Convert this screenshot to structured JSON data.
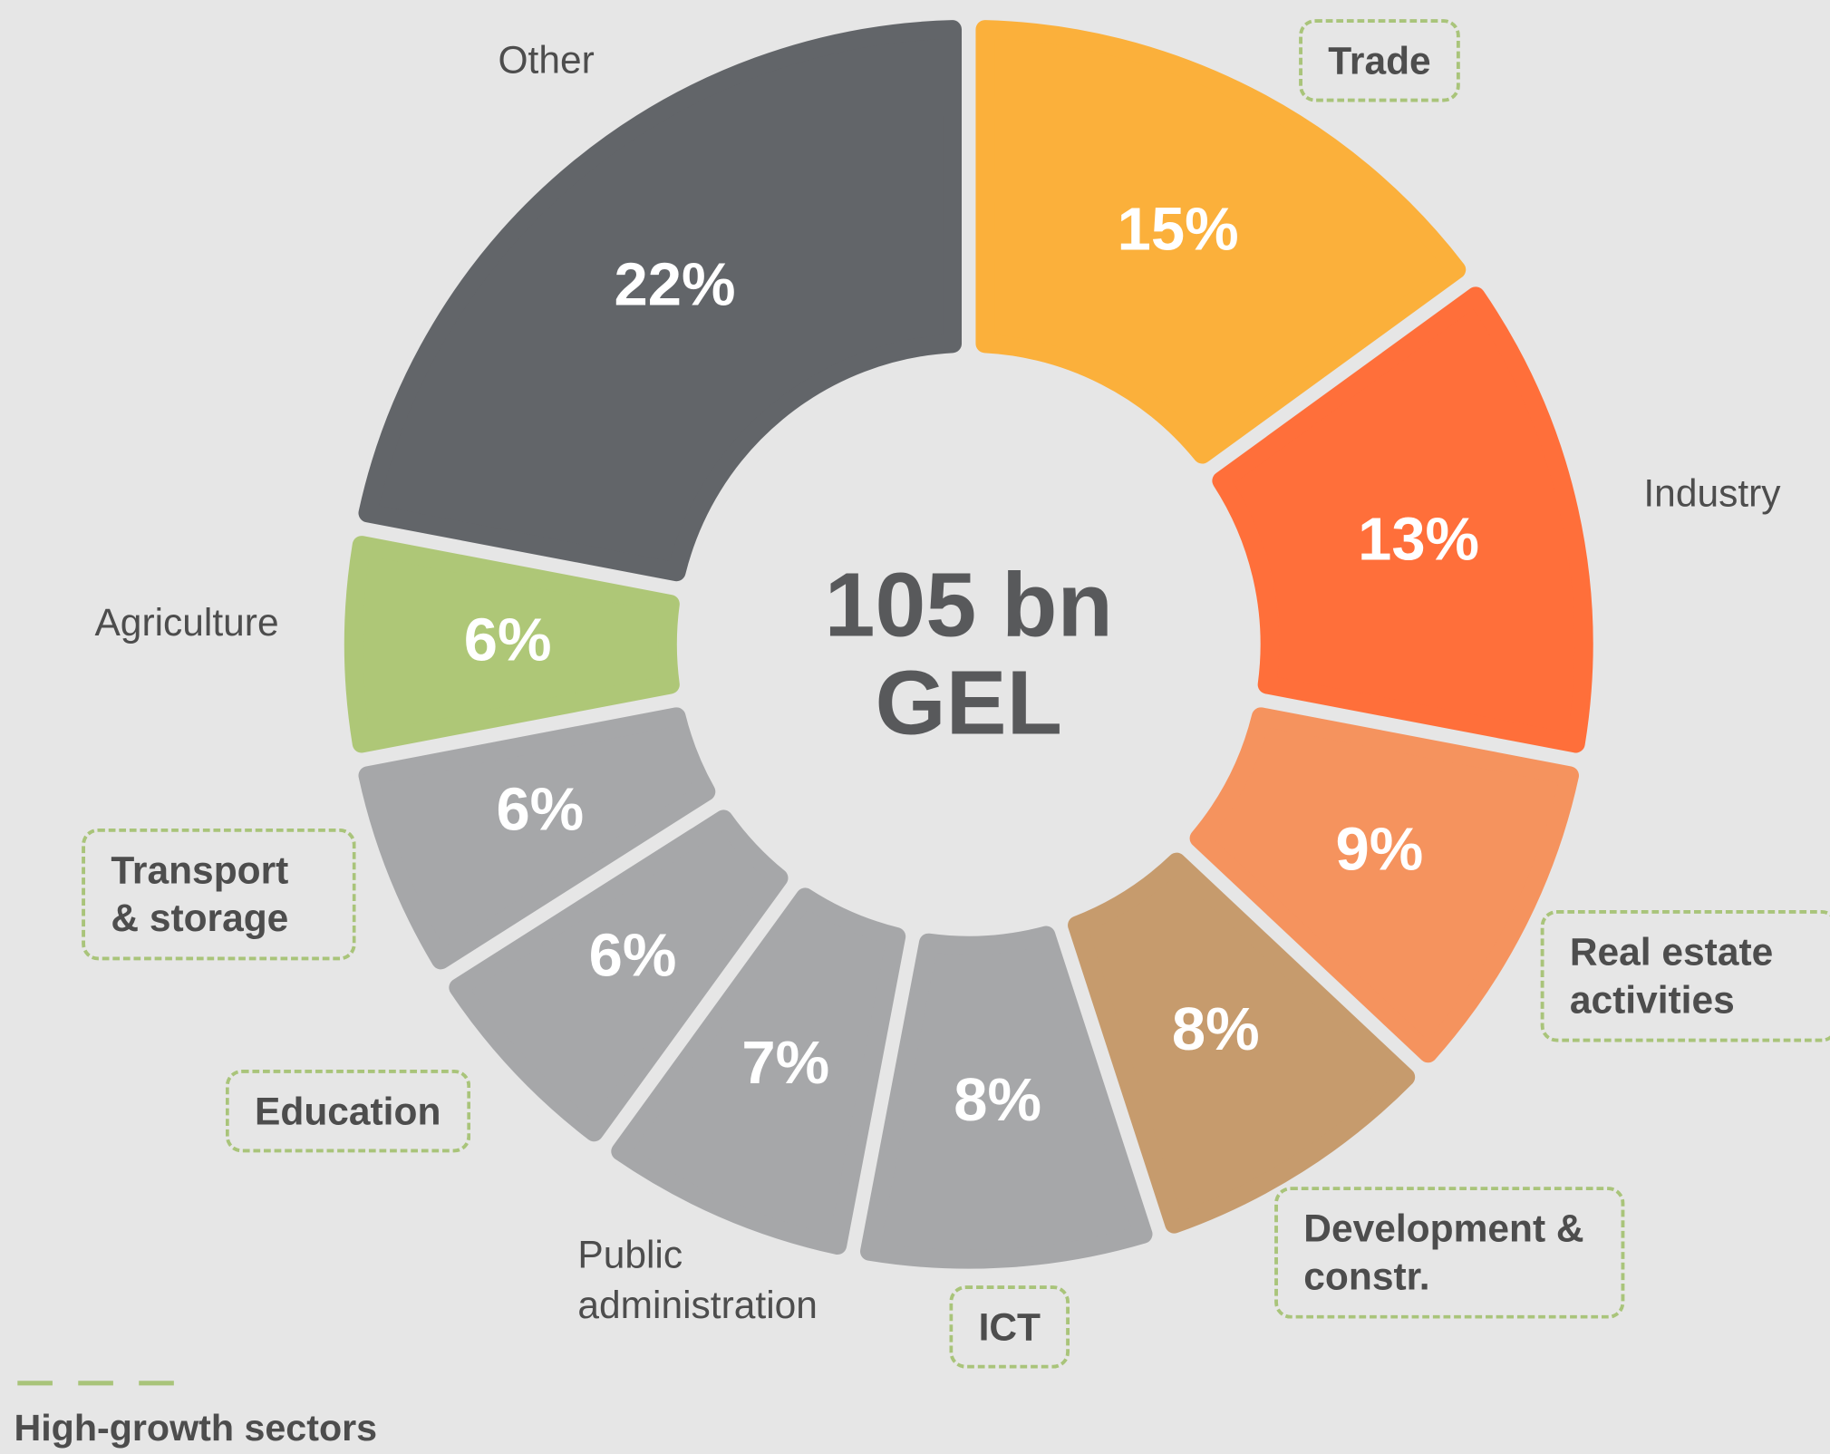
{
  "chart_data": {
    "type": "donut",
    "categories": [
      "Trade",
      "Industry",
      "Real estate activities",
      "Development & constr.",
      "ICT",
      "Public administration",
      "Education",
      "Transport & storage",
      "Agriculture",
      "Other"
    ],
    "values": [
      15,
      13,
      9,
      8,
      8,
      7,
      6,
      6,
      6,
      22
    ],
    "value_labels": [
      "15%",
      "13%",
      "9%",
      "8%",
      "8%",
      "7%",
      "6%",
      "6%",
      "6%",
      "22%"
    ],
    "colors": [
      "#fbb03b",
      "#ff6f3a",
      "#f5935e",
      "#c69b6d",
      "#a6a7a9",
      "#a6a7a9",
      "#a6a7a9",
      "#a6a7a9",
      "#aec777",
      "#626569"
    ],
    "high_growth": [
      true,
      false,
      true,
      true,
      true,
      false,
      true,
      true,
      false,
      false
    ],
    "center_text": [
      "105 bn",
      "GEL"
    ],
    "legend": {
      "label": "High-growth sectors",
      "color": "#a9c47a"
    }
  }
}
